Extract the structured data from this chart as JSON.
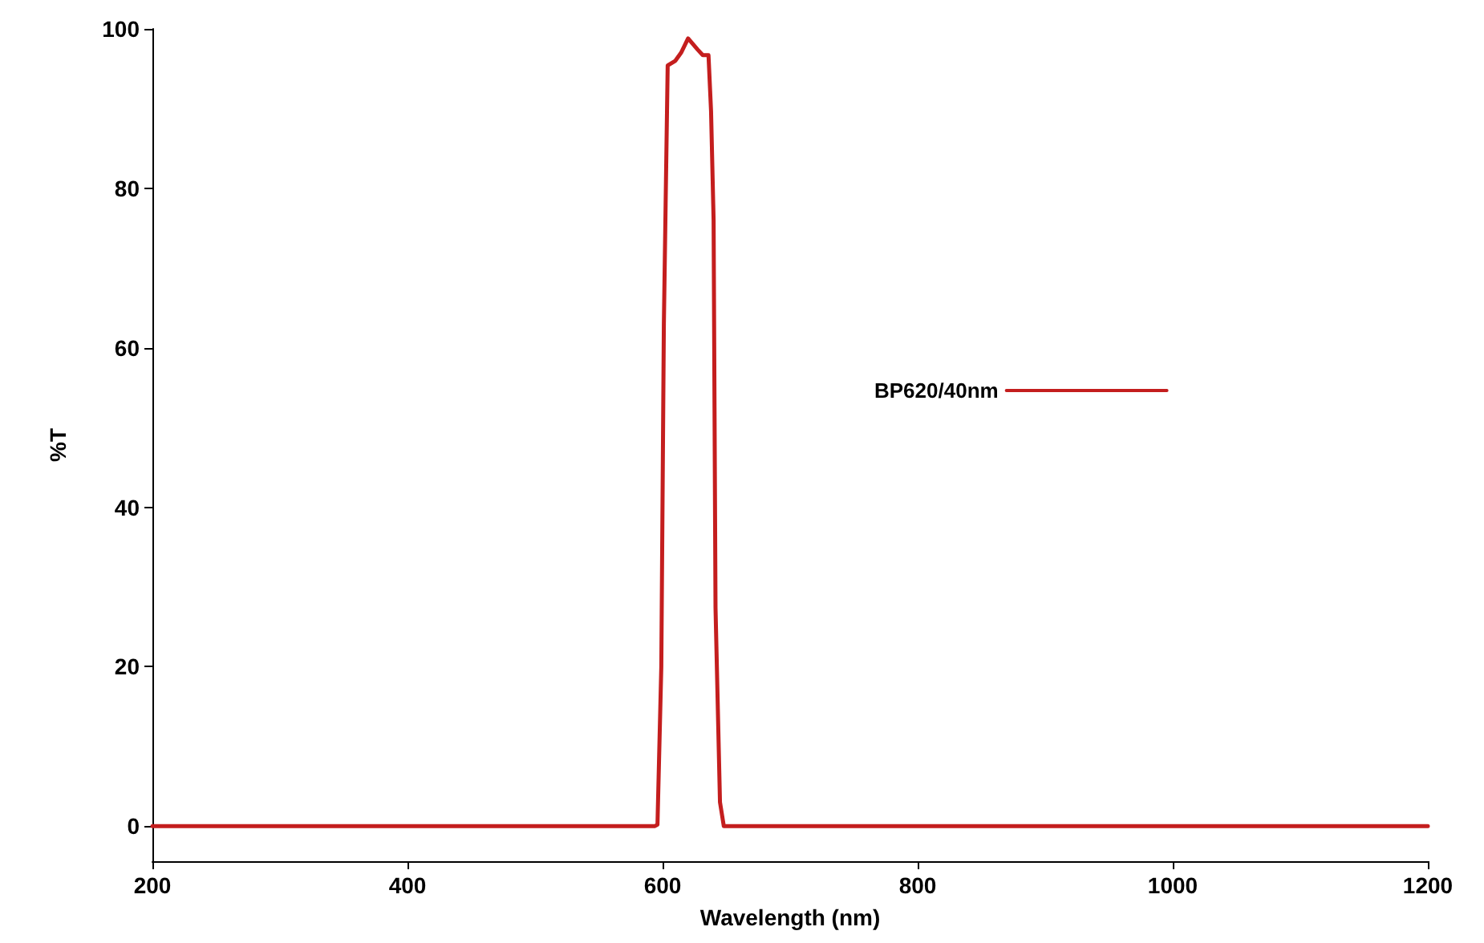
{
  "chart_data": {
    "type": "line",
    "xlabel": "Wavelength (nm)",
    "ylabel": "%T",
    "xlim": [
      200,
      1200
    ],
    "xticks": [
      200,
      400,
      600,
      800,
      1000,
      1200
    ],
    "ylim": [
      -4.4,
      100
    ],
    "yticks": [
      0,
      20,
      40,
      60,
      80,
      100
    ],
    "grid": false,
    "legend": "right",
    "marker": "none",
    "line_style": "solid",
    "series": [
      {
        "name": "BP620/40nm",
        "color": "#c41e1e",
        "x": [
          200,
          400,
          590,
          594,
          596,
          599,
          601,
          604,
          610,
          614.5,
          620,
          627.5,
          631.5,
          636,
          638,
          640,
          641.5,
          645,
          648,
          700,
          900,
          1200
        ],
        "values": [
          0,
          0,
          0,
          0,
          0.2,
          20,
          63,
          95.4,
          96,
          97,
          98.8,
          97.4,
          96.7,
          96.7,
          89.7,
          76,
          27.4,
          3,
          0,
          0,
          0,
          0
        ]
      }
    ]
  }
}
